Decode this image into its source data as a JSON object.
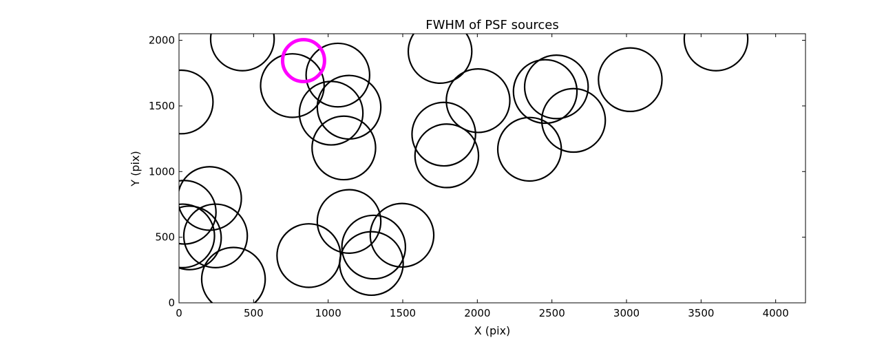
{
  "chart_data": {
    "type": "scatter",
    "title": "FWHM of PSF sources",
    "xlabel": "X (pix)",
    "ylabel": "Y (pix)",
    "xlim": [
      0,
      4200
    ],
    "ylim": [
      0,
      2050
    ],
    "xticks": [
      0,
      500,
      1000,
      1500,
      2000,
      2500,
      3000,
      3500,
      4000
    ],
    "yticks": [
      0,
      500,
      1000,
      1500,
      2000
    ],
    "grid": false,
    "marker": "open-circle",
    "marker_radius_data_x": 213,
    "colors": {
      "default": "#000000",
      "highlight": "#ff00ff"
    },
    "series": [
      {
        "points": [
          {
            "x": 425,
            "y": 2010
          },
          {
            "x": 3600,
            "y": 2010
          },
          {
            "x": 1750,
            "y": 1915
          },
          {
            "x": 1065,
            "y": 1735
          },
          {
            "x": 3025,
            "y": 1700
          },
          {
            "x": 2530,
            "y": 1645
          },
          {
            "x": 2455,
            "y": 1610
          },
          {
            "x": 760,
            "y": 1655
          },
          {
            "x": 2005,
            "y": 1540
          },
          {
            "x": 15,
            "y": 1530
          },
          {
            "x": 1140,
            "y": 1490
          },
          {
            "x": 1020,
            "y": 1445
          },
          {
            "x": 2645,
            "y": 1390
          },
          {
            "x": 1775,
            "y": 1285
          },
          {
            "x": 1105,
            "y": 1180
          },
          {
            "x": 2350,
            "y": 1170
          },
          {
            "x": 1795,
            "y": 1120
          },
          {
            "x": 205,
            "y": 795
          },
          {
            "x": 35,
            "y": 690
          },
          {
            "x": 1140,
            "y": 620
          },
          {
            "x": 1495,
            "y": 515
          },
          {
            "x": 245,
            "y": 510
          },
          {
            "x": 25,
            "y": 510
          },
          {
            "x": 70,
            "y": 495
          },
          {
            "x": 1305,
            "y": 425
          },
          {
            "x": 870,
            "y": 360
          },
          {
            "x": 1290,
            "y": 300
          },
          {
            "x": 365,
            "y": 180
          }
        ]
      },
      {
        "highlight": true,
        "points": [
          {
            "x": 835,
            "y": 1845
          }
        ]
      }
    ]
  }
}
